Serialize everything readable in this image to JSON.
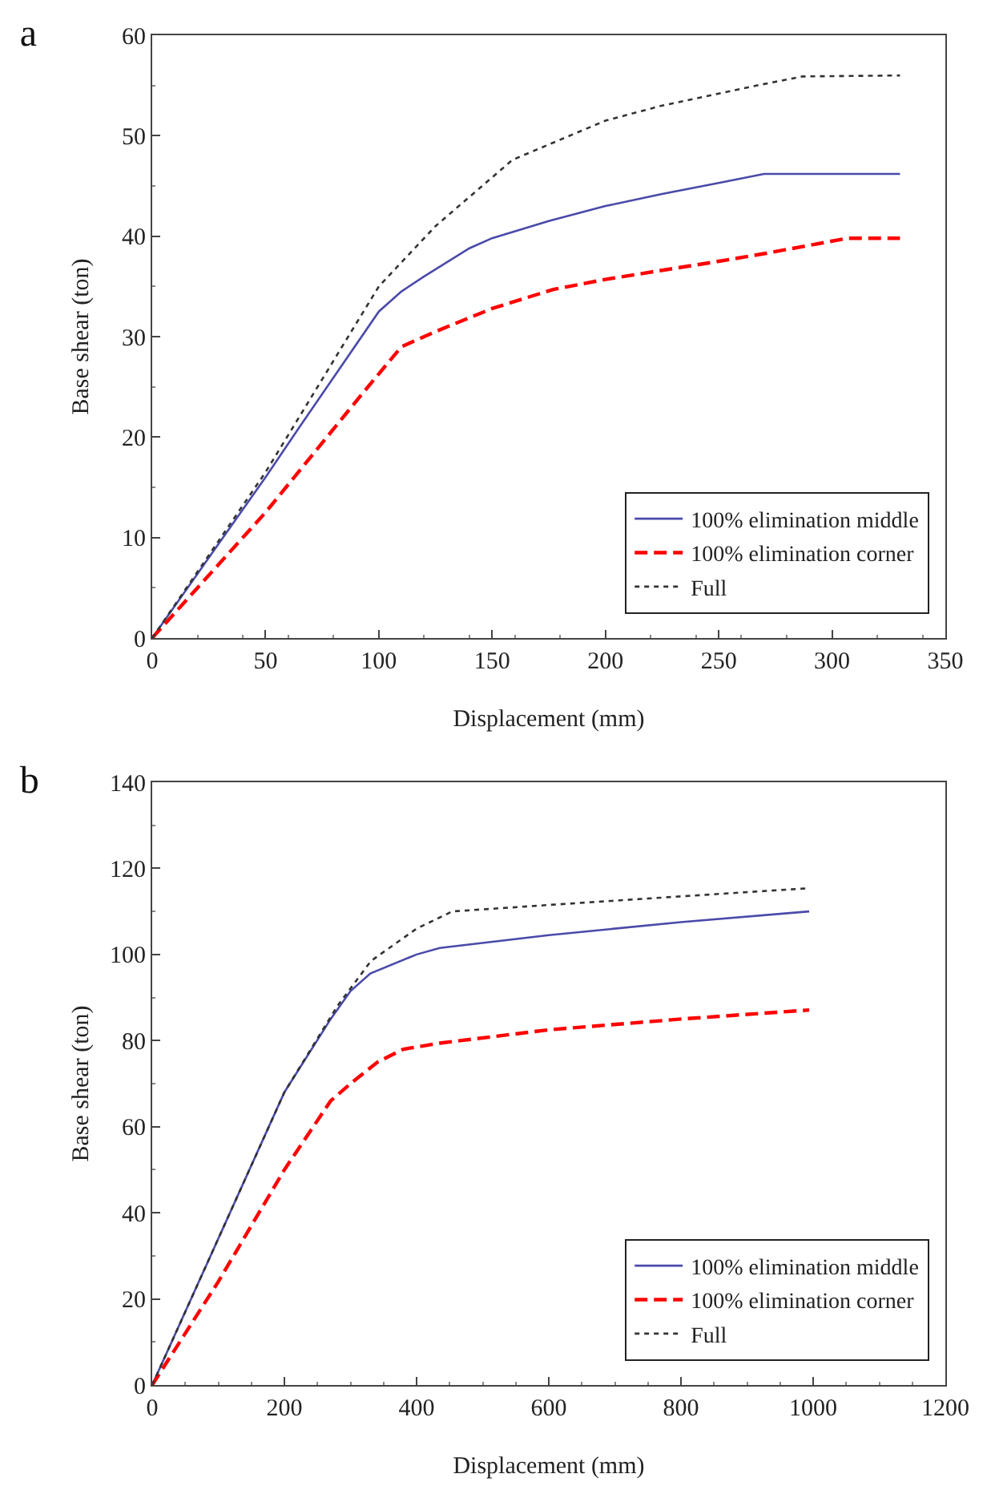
{
  "chart_data": [
    {
      "type": "line",
      "title": "a",
      "xlabel": "Displacement (mm)",
      "ylabel": "Base shear (ton)",
      "xlim": [
        0,
        350
      ],
      "xticks": [
        0,
        50,
        100,
        150,
        200,
        250,
        300,
        350
      ],
      "ylim": [
        0,
        60
      ],
      "yticks": [
        0,
        10,
        20,
        30,
        40,
        50,
        60
      ],
      "grid": false,
      "legend": "bottom right",
      "series": [
        {
          "name": "100% elimination middle",
          "color": "#4a4aaa",
          "line_style": "solid",
          "x": [
            0,
            50,
            65,
            100,
            110,
            120,
            140,
            150,
            175,
            200,
            225,
            250,
            270,
            330
          ],
          "values": [
            0,
            16,
            21,
            32.5,
            34.5,
            36,
            38.8,
            39.8,
            41.5,
            43,
            44.2,
            45.3,
            46.2,
            46.2
          ]
        },
        {
          "name": "100% elimination corner",
          "color": "#ff0000",
          "line_style": "dashed",
          "x": [
            0,
            50,
            93,
            110,
            125,
            150,
            177,
            200,
            250,
            271,
            307,
            330
          ],
          "values": [
            0,
            12.5,
            24.4,
            29,
            30.5,
            32.8,
            34.7,
            35.7,
            37.5,
            38.3,
            39.8,
            39.8
          ]
        },
        {
          "name": "Full",
          "color": "#333333",
          "line_style": "dotted",
          "x": [
            0,
            50,
            100,
            125,
            159,
            200,
            225,
            269,
            287,
            330
          ],
          "values": [
            0,
            16.5,
            35,
            41,
            47.6,
            51.5,
            53,
            55.1,
            55.9,
            56
          ]
        }
      ]
    },
    {
      "type": "line",
      "title": "b",
      "xlabel": "Displacement (mm)",
      "ylabel": "Base shear (ton)",
      "xlim": [
        0,
        1200
      ],
      "xticks": [
        0,
        200,
        400,
        600,
        800,
        1000,
        1200
      ],
      "ylim": [
        0,
        140
      ],
      "yticks": [
        0,
        20,
        40,
        60,
        80,
        100,
        120,
        140
      ],
      "grid": false,
      "legend": "bottom right",
      "series": [
        {
          "name": "100% elimination middle",
          "color": "#4a4aaa",
          "line_style": "solid",
          "x": [
            0,
            200,
            270,
            300,
            330,
            400,
            435,
            600,
            800,
            994
          ],
          "values": [
            0,
            68,
            85,
            91.5,
            95.6,
            100,
            101.5,
            104.5,
            107.5,
            110
          ]
        },
        {
          "name": "100% elimination corner",
          "color": "#ff0000",
          "line_style": "dashed",
          "x": [
            0,
            100,
            200,
            270,
            300,
            341,
            380,
            435,
            600,
            800,
            994
          ],
          "values": [
            0,
            24,
            50,
            66,
            70,
            75,
            78,
            79.4,
            82.5,
            85,
            87.1
          ]
        },
        {
          "name": "Full",
          "color": "#333333",
          "line_style": "dotted",
          "x": [
            0,
            200,
            280,
            331,
            400,
            454,
            600,
            800,
            994
          ],
          "values": [
            0,
            68,
            88,
            98.5,
            106,
            110,
            111.5,
            113.5,
            115.4
          ]
        }
      ]
    }
  ]
}
